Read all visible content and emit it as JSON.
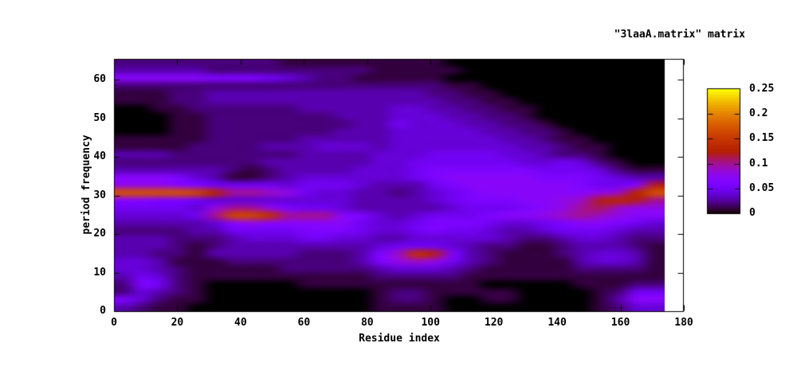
{
  "figure": {
    "background": "#ffffff",
    "text_color": "#000000",
    "frame_color": "#000000",
    "nodata_color": "#ffffff"
  },
  "axes": {
    "x_ticks": [
      0,
      20,
      40,
      60,
      80,
      100,
      120,
      140,
      160,
      180
    ],
    "x_tick_labels": [
      "0",
      "20",
      "40",
      "60",
      "80",
      "100",
      "120",
      "140",
      "160",
      "180"
    ],
    "y_ticks": [
      0,
      10,
      20,
      30,
      40,
      50,
      60
    ],
    "y_tick_labels": [
      "0",
      "10",
      "20",
      "30",
      "40",
      "50",
      "60"
    ]
  },
  "colorbar": {
    "vmin": 0,
    "vmax": 0.25,
    "entries": [
      {
        "label": "0.25",
        "value": 0.25
      },
      {
        "label": "0.2",
        "value": 0.2
      },
      {
        "label": "0.15",
        "value": 0.15
      },
      {
        "label": "0.1",
        "value": 0.1
      },
      {
        "label": "0.05",
        "value": 0.05
      },
      {
        "label": "0",
        "value": 0
      }
    ],
    "inner_tick_values": [
      0.05,
      0.1,
      0.15,
      0.2
    ]
  },
  "chart_data": {
    "type": "heatmap",
    "title": "\"3laaA.matrix\" matrix",
    "xlabel": "Residue index",
    "ylabel": "period frequency",
    "x_range_axis": [
      0,
      180
    ],
    "y_range_axis": [
      0,
      65.4
    ],
    "residue_start": 0,
    "residue_step": 6,
    "residue_end": 174,
    "period_top": 64,
    "period_step": 2,
    "period_bottom": 0,
    "value_unit": 0.01,
    "vmin": 0,
    "vmax": 0.25,
    "palette_rgbformulae": [
      7,
      5,
      15
    ],
    "values_x01": [
      [
        2,
        2,
        2,
        2,
        2,
        2,
        2,
        2,
        2,
        1,
        1,
        1,
        1,
        1,
        1,
        1,
        1,
        1,
        0,
        0,
        0,
        0,
        0,
        0,
        0,
        0,
        0,
        0,
        0,
        0
      ],
      [
        3,
        3,
        3,
        3,
        3,
        2,
        2,
        2,
        2,
        2,
        2,
        2,
        2,
        2,
        1,
        1,
        1,
        1,
        1,
        0,
        0,
        0,
        0,
        0,
        0,
        0,
        0,
        0,
        0,
        0
      ],
      [
        7,
        7,
        7,
        7,
        7,
        6,
        6,
        6,
        5,
        4,
        3,
        2,
        2,
        1,
        1,
        1,
        1,
        1,
        0,
        0,
        0,
        0,
        0,
        0,
        0,
        0,
        0,
        0,
        0,
        0
      ],
      [
        2,
        2,
        2,
        2,
        2,
        2,
        2,
        2,
        2,
        2,
        2,
        2,
        2,
        2,
        2,
        2,
        2,
        2,
        1,
        1,
        0,
        0,
        0,
        0,
        0,
        0,
        0,
        0,
        0,
        0
      ],
      [
        1,
        1,
        1,
        2,
        2,
        3,
        3,
        3,
        3,
        3,
        3,
        3,
        3,
        3,
        3,
        3,
        3,
        2,
        2,
        1,
        1,
        0,
        0,
        0,
        0,
        0,
        0,
        0,
        0,
        0
      ],
      [
        1,
        1,
        1,
        2,
        2,
        3,
        3,
        3,
        3,
        3,
        3,
        3,
        3,
        3,
        3,
        3,
        3,
        3,
        2,
        2,
        1,
        1,
        0,
        0,
        0,
        0,
        0,
        0,
        0,
        0
      ],
      [
        0,
        0,
        1,
        1,
        2,
        2,
        2,
        2,
        2,
        2,
        3,
        3,
        3,
        3,
        3,
        4,
        4,
        3,
        3,
        2,
        2,
        1,
        1,
        0,
        0,
        0,
        0,
        0,
        0,
        0
      ],
      [
        0,
        0,
        0,
        1,
        1,
        2,
        2,
        2,
        2,
        2,
        2,
        2,
        3,
        3,
        3,
        4,
        4,
        4,
        3,
        3,
        2,
        2,
        1,
        0,
        0,
        0,
        0,
        0,
        0,
        0
      ],
      [
        0,
        0,
        0,
        1,
        1,
        2,
        2,
        2,
        2,
        2,
        2,
        2,
        2,
        3,
        3,
        5,
        4,
        4,
        4,
        3,
        3,
        2,
        2,
        1,
        0,
        0,
        0,
        0,
        0,
        0
      ],
      [
        0,
        0,
        0,
        1,
        1,
        2,
        2,
        2,
        2,
        2,
        2,
        2,
        3,
        3,
        3,
        4,
        4,
        4,
        4,
        4,
        3,
        3,
        2,
        2,
        1,
        0,
        0,
        0,
        0,
        0
      ],
      [
        1,
        1,
        1,
        1,
        1,
        2,
        2,
        2,
        2,
        2,
        3,
        3,
        3,
        3,
        3,
        4,
        4,
        4,
        4,
        4,
        4,
        3,
        3,
        2,
        1,
        1,
        0,
        0,
        0,
        0
      ],
      [
        1,
        1,
        1,
        1,
        2,
        2,
        2,
        2,
        3,
        3,
        3,
        4,
        4,
        4,
        3,
        4,
        4,
        4,
        4,
        4,
        4,
        4,
        3,
        3,
        2,
        1,
        1,
        0,
        0,
        0
      ],
      [
        3,
        3,
        3,
        2,
        2,
        2,
        2,
        2,
        2,
        2,
        3,
        3,
        3,
        3,
        4,
        4,
        4,
        5,
        5,
        5,
        5,
        4,
        4,
        3,
        2,
        2,
        1,
        0,
        0,
        0
      ],
      [
        2,
        2,
        2,
        2,
        2,
        2,
        2,
        2,
        3,
        3,
        3,
        3,
        3,
        3,
        4,
        4,
        5,
        5,
        5,
        5,
        5,
        5,
        4,
        4,
        5,
        4,
        2,
        1,
        0,
        0
      ],
      [
        3,
        3,
        3,
        3,
        3,
        3,
        2,
        1,
        2,
        3,
        3,
        3,
        3,
        4,
        4,
        4,
        5,
        6,
        6,
        6,
        6,
        6,
        6,
        5,
        5,
        5,
        4,
        2,
        1,
        1
      ],
      [
        7,
        7,
        7,
        6,
        4,
        3,
        1,
        1,
        2,
        3,
        4,
        4,
        4,
        4,
        4,
        4,
        5,
        6,
        7,
        7,
        7,
        7,
        7,
        6,
        6,
        6,
        5,
        4,
        3,
        3
      ],
      [
        8,
        8,
        8,
        7,
        6,
        5,
        5,
        5,
        5,
        4,
        5,
        5,
        5,
        4,
        3,
        3,
        3,
        5,
        6,
        7,
        7,
        7,
        7,
        7,
        7,
        6,
        5,
        5,
        7,
        12
      ],
      [
        17,
        17,
        17,
        17,
        16,
        13,
        10,
        10,
        9,
        8,
        5,
        4,
        4,
        3,
        3,
        2,
        3,
        4,
        5,
        6,
        7,
        7,
        7,
        7,
        7,
        7,
        8,
        9,
        13,
        17
      ],
      [
        7,
        7,
        6,
        6,
        5,
        4,
        4,
        4,
        4,
        4,
        4,
        4,
        4,
        3,
        3,
        3,
        3,
        4,
        5,
        6,
        6,
        6,
        7,
        7,
        8,
        9,
        12,
        13,
        12,
        10
      ],
      [
        5,
        5,
        5,
        5,
        4,
        8,
        10,
        10,
        8,
        6,
        5,
        5,
        4,
        3,
        3,
        3,
        3,
        3,
        4,
        5,
        5,
        5,
        6,
        7,
        8,
        10,
        11,
        9,
        8,
        8
      ],
      [
        4,
        4,
        4,
        4,
        5,
        10,
        16,
        16,
        14,
        10,
        10,
        10,
        7,
        6,
        4,
        3,
        4,
        5,
        5,
        5,
        6,
        7,
        7,
        8,
        9,
        10,
        9,
        8,
        7,
        7
      ],
      [
        3,
        3,
        3,
        3,
        3,
        4,
        7,
        8,
        7,
        7,
        7,
        7,
        7,
        5,
        4,
        4,
        5,
        6,
        6,
        6,
        5,
        4,
        4,
        5,
        6,
        7,
        7,
        6,
        5,
        4
      ],
      [
        2,
        2,
        2,
        2,
        3,
        3,
        5,
        5,
        5,
        5,
        6,
        6,
        6,
        5,
        4,
        4,
        5,
        6,
        5,
        5,
        4,
        3,
        3,
        4,
        5,
        5,
        5,
        4,
        3,
        3
      ],
      [
        3,
        3,
        3,
        2,
        2,
        2,
        3,
        4,
        4,
        4,
        5,
        5,
        4,
        4,
        3,
        3,
        4,
        4,
        4,
        4,
        4,
        3,
        2,
        2,
        3,
        4,
        4,
        3,
        2,
        2
      ],
      [
        3,
        3,
        3,
        2,
        1,
        2,
        3,
        3,
        3,
        3,
        3,
        3,
        3,
        3,
        4,
        5,
        5,
        5,
        4,
        3,
        2,
        2,
        1,
        1,
        2,
        3,
        3,
        3,
        2,
        1
      ],
      [
        3,
        3,
        2,
        2,
        1,
        3,
        3,
        3,
        3,
        3,
        2,
        2,
        2,
        3,
        6,
        9,
        14,
        12,
        6,
        3,
        2,
        1,
        1,
        1,
        2,
        3,
        4,
        4,
        3,
        1
      ],
      [
        4,
        4,
        3,
        1,
        1,
        1,
        2,
        2,
        2,
        2,
        2,
        2,
        2,
        3,
        6,
        8,
        9,
        8,
        5,
        3,
        2,
        1,
        1,
        1,
        1,
        3,
        4,
        4,
        3,
        1
      ],
      [
        4,
        4,
        3,
        2,
        1,
        1,
        1,
        1,
        1,
        2,
        2,
        2,
        2,
        2,
        3,
        4,
        4,
        4,
        3,
        2,
        1,
        1,
        1,
        1,
        1,
        2,
        2,
        2,
        2,
        1
      ],
      [
        3,
        5,
        4,
        2,
        1,
        1,
        1,
        1,
        1,
        1,
        1,
        1,
        1,
        1,
        2,
        2,
        2,
        2,
        2,
        1,
        1,
        1,
        1,
        1,
        1,
        1,
        1,
        1,
        1,
        1
      ],
      [
        2,
        6,
        5,
        2,
        1,
        0,
        0,
        0,
        0,
        0,
        1,
        1,
        1,
        1,
        1,
        1,
        1,
        1,
        1,
        1,
        0,
        0,
        0,
        0,
        0,
        1,
        1,
        1,
        2,
        2
      ],
      [
        2,
        4,
        3,
        2,
        1,
        0,
        0,
        0,
        0,
        0,
        0,
        0,
        0,
        0,
        1,
        2,
        2,
        1,
        1,
        1,
        1,
        1,
        0,
        0,
        0,
        0,
        1,
        2,
        5,
        5
      ],
      [
        6,
        4,
        2,
        1,
        1,
        0,
        0,
        0,
        0,
        0,
        0,
        0,
        0,
        0,
        1,
        2,
        2,
        1,
        0,
        0,
        1,
        1,
        0,
        0,
        0,
        0,
        1,
        3,
        7,
        7
      ],
      [
        3,
        2,
        1,
        1,
        0,
        0,
        0,
        0,
        0,
        0,
        0,
        0,
        0,
        0,
        1,
        1,
        1,
        1,
        0,
        0,
        0,
        0,
        0,
        0,
        0,
        0,
        1,
        2,
        4,
        4
      ]
    ]
  }
}
